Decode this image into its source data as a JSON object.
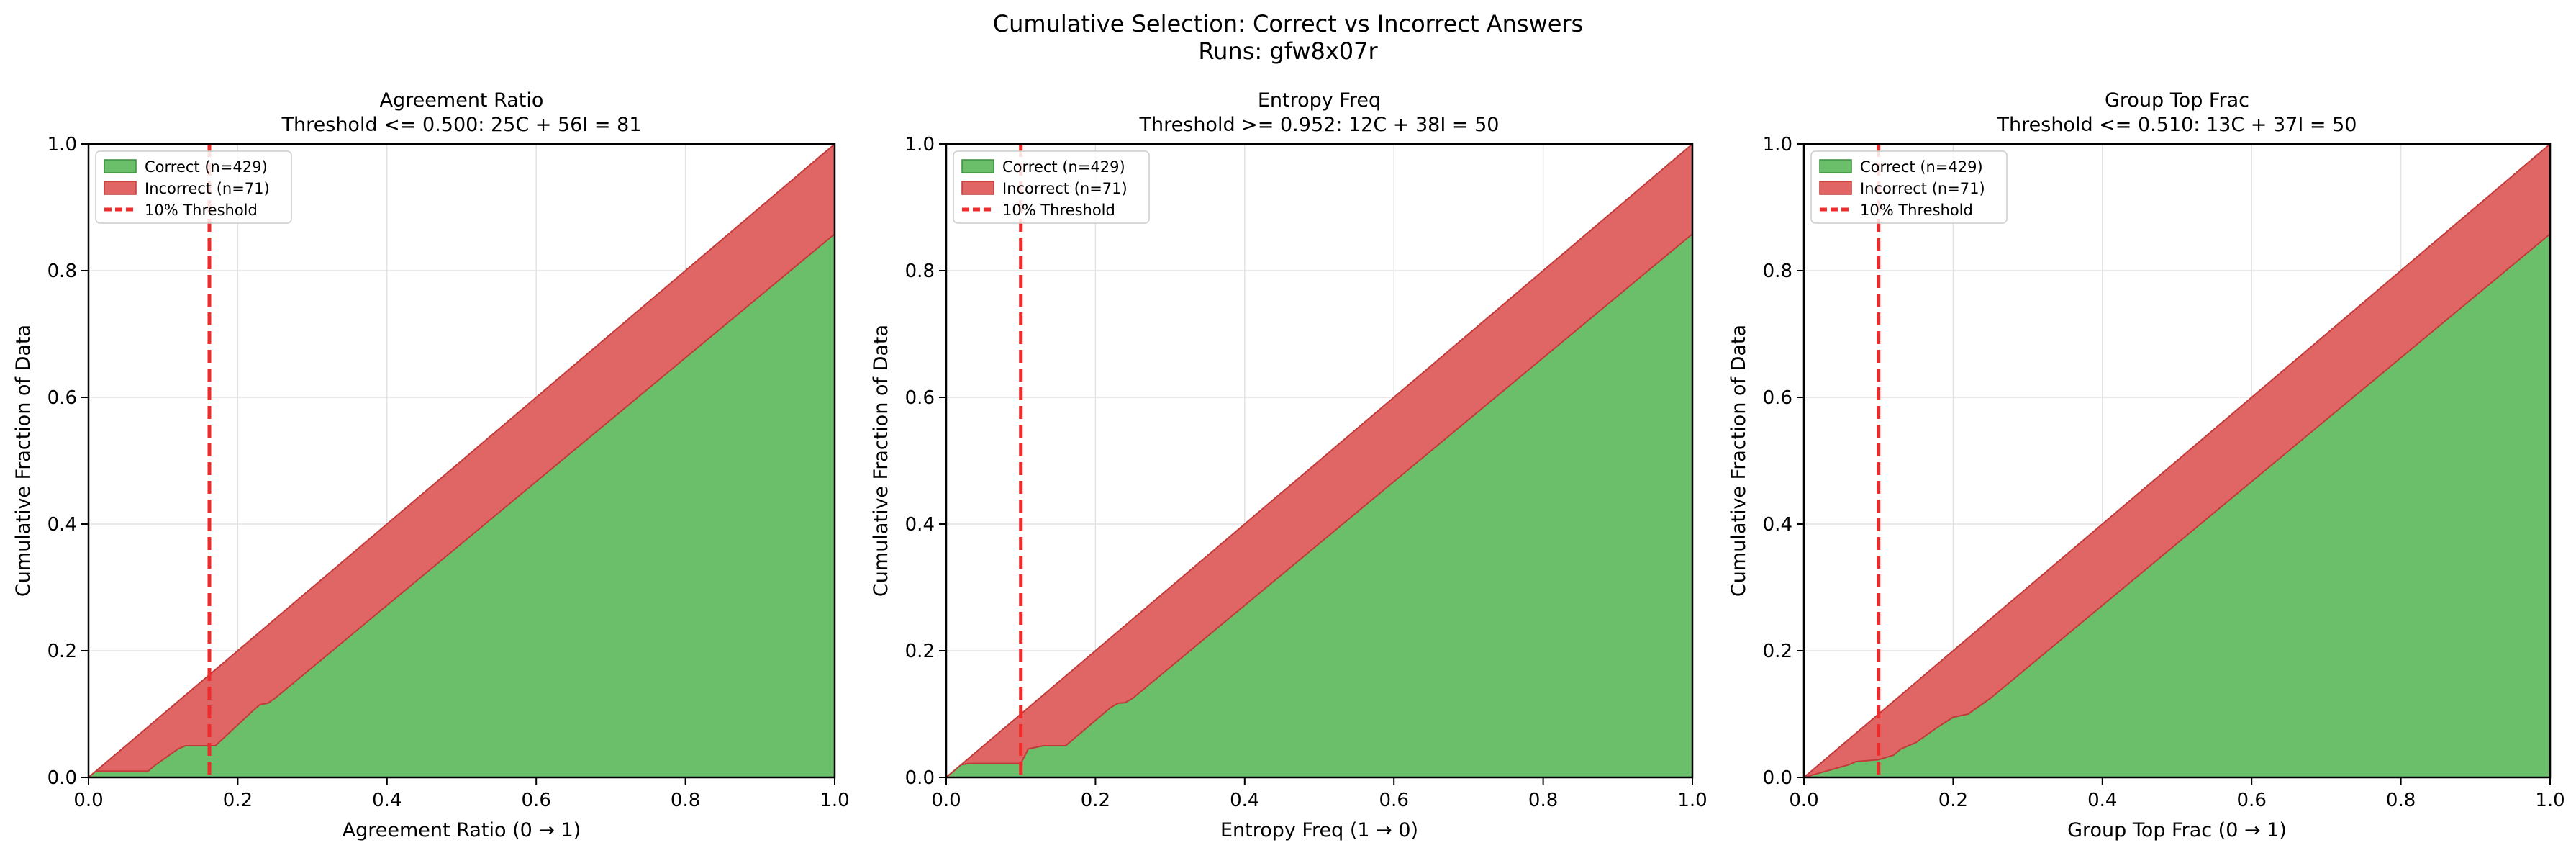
{
  "suptitle": {
    "line1": "Cumulative Selection: Correct vs Incorrect Answers",
    "line2": "Runs: gfw8x07r"
  },
  "colors": {
    "correct_fill": "#6bbf6a",
    "correct_edge": "#3c8f3c",
    "incorrect_fill": "#e06666",
    "incorrect_edge": "#c23a3a",
    "threshold": "#ee2a2a",
    "grid": "#e3e3e3"
  },
  "chart_data": [
    {
      "type": "area",
      "title": "Agreement Ratio",
      "subtitle": "Threshold <= 0.500: 25C + 56I = 81",
      "xlabel": "Agreement Ratio (0 → 1)",
      "ylabel": "Cumulative Fraction of Data",
      "xlim": [
        0,
        1
      ],
      "ylim": [
        0,
        1
      ],
      "xticks": [
        "0.0",
        "0.2",
        "0.4",
        "0.6",
        "0.8",
        "1.0"
      ],
      "yticks": [
        "0.0",
        "0.2",
        "0.4",
        "0.6",
        "0.8",
        "1.0"
      ],
      "grid": true,
      "legend": {
        "placement": "top-left",
        "entries": [
          "Correct (n=429)",
          "Incorrect (n=71)",
          "10% Threshold"
        ]
      },
      "threshold_x": 0.162,
      "correct": {
        "x": [
          0,
          0.01,
          0.08,
          0.09,
          0.12,
          0.13,
          0.17,
          0.22,
          0.23,
          0.24,
          0.25,
          1.0
        ],
        "y": [
          0,
          0.01,
          0.01,
          0.02,
          0.045,
          0.05,
          0.05,
          0.105,
          0.115,
          0.117,
          0.125,
          0.858
        ]
      },
      "incorrect": {
        "x": [
          0,
          1.0
        ],
        "y": [
          0,
          1.0
        ]
      }
    },
    {
      "type": "area",
      "title": "Entropy Freq",
      "subtitle": "Threshold >= 0.952: 12C + 38I = 50",
      "xlabel": "Entropy Freq (1 → 0)",
      "ylabel": "Cumulative Fraction of Data",
      "xlim": [
        0,
        1
      ],
      "ylim": [
        0,
        1
      ],
      "xticks": [
        "0.0",
        "0.2",
        "0.4",
        "0.6",
        "0.8",
        "1.0"
      ],
      "yticks": [
        "0.0",
        "0.2",
        "0.4",
        "0.6",
        "0.8",
        "1.0"
      ],
      "grid": true,
      "legend": {
        "placement": "top-left",
        "entries": [
          "Correct (n=429)",
          "Incorrect (n=71)",
          "10% Threshold"
        ]
      },
      "threshold_x": 0.1,
      "correct": {
        "x": [
          0,
          0.02,
          0.03,
          0.1,
          0.11,
          0.13,
          0.16,
          0.22,
          0.23,
          0.24,
          0.25,
          1.0
        ],
        "y": [
          0,
          0.02,
          0.022,
          0.022,
          0.045,
          0.05,
          0.05,
          0.11,
          0.117,
          0.118,
          0.125,
          0.858
        ]
      },
      "incorrect": {
        "x": [
          0,
          1.0
        ],
        "y": [
          0,
          1.0
        ]
      }
    },
    {
      "type": "area",
      "title": "Group Top Frac",
      "subtitle": "Threshold <= 0.510: 13C + 37I = 50",
      "xlabel": "Group Top Frac (0 → 1)",
      "ylabel": "Cumulative Fraction of Data",
      "xlim": [
        0,
        1
      ],
      "ylim": [
        0,
        1
      ],
      "xticks": [
        "0.0",
        "0.2",
        "0.4",
        "0.6",
        "0.8",
        "1.0"
      ],
      "yticks": [
        "0.0",
        "0.2",
        "0.4",
        "0.6",
        "0.8",
        "1.0"
      ],
      "grid": true,
      "legend": {
        "placement": "top-left",
        "entries": [
          "Correct (n=429)",
          "Incorrect (n=71)",
          "10% Threshold"
        ]
      },
      "threshold_x": 0.1,
      "correct": {
        "x": [
          0,
          0.03,
          0.06,
          0.07,
          0.1,
          0.12,
          0.13,
          0.15,
          0.18,
          0.2,
          0.22,
          0.25,
          1.0
        ],
        "y": [
          0,
          0.01,
          0.02,
          0.025,
          0.028,
          0.035,
          0.045,
          0.055,
          0.08,
          0.095,
          0.1,
          0.125,
          0.858
        ]
      },
      "incorrect": {
        "x": [
          0,
          1.0
        ],
        "y": [
          0,
          1.0
        ]
      }
    }
  ]
}
